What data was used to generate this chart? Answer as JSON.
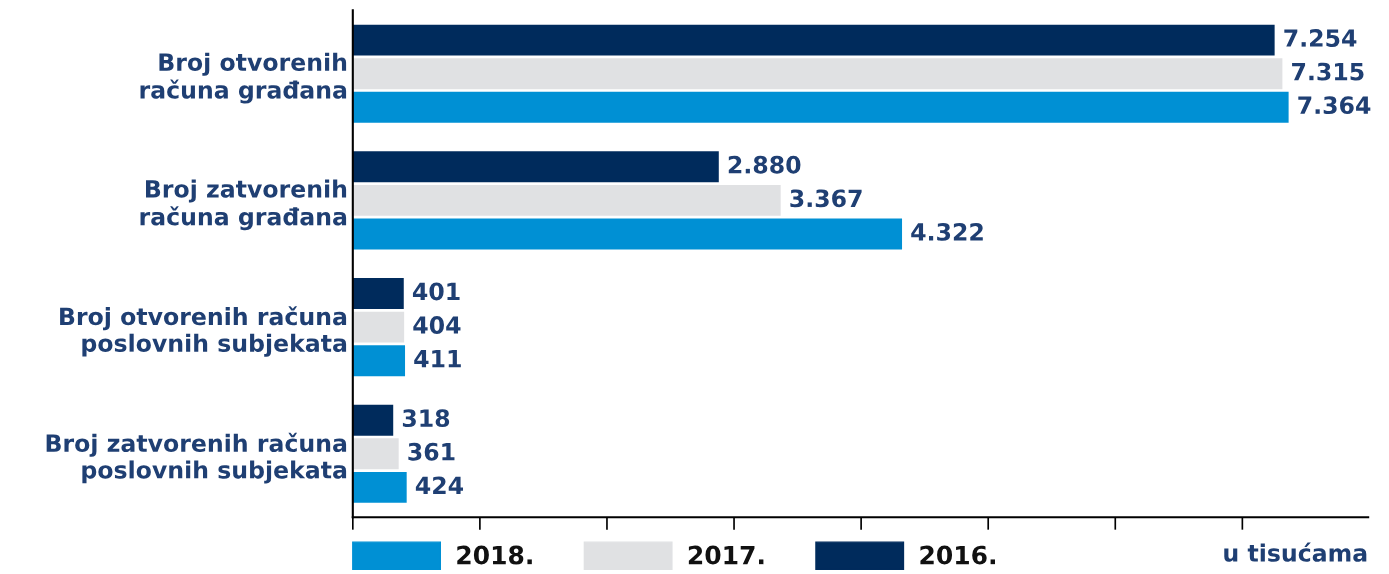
{
  "chart_data": {
    "type": "bar",
    "orientation": "horizontal",
    "categories": [
      "Broj otvorenih\nračuna građana",
      "Broj zatvorenih\nračuna građana",
      "Broj otvorenih računa\nposlovnih subjekata",
      "Broj zatvorenih računa\nposlovnih subjekata"
    ],
    "series": [
      {
        "name": "2018.",
        "color": "#0090d4",
        "values": [
          7364,
          4322,
          411,
          424
        ],
        "value_labels": [
          "7.364",
          "4.322",
          "411",
          "424"
        ]
      },
      {
        "name": "2017.",
        "color": "#e0e1e3",
        "values": [
          7315,
          3367,
          404,
          361
        ],
        "value_labels": [
          "7.315",
          "3.367",
          "404",
          "361"
        ]
      },
      {
        "name": "2016.",
        "color": "#002b5c",
        "values": [
          7254,
          2880,
          401,
          318
        ],
        "value_labels": [
          "7.254",
          "2.880",
          "401",
          "318"
        ]
      }
    ],
    "xlim": [
      0,
      7990
    ],
    "xticks": [
      {
        "value": 0,
        "label": null
      },
      {
        "value": 1000,
        "label": null
      },
      {
        "value": 2000,
        "label": null
      },
      {
        "value": 3000,
        "label": null
      },
      {
        "value": 4000,
        "label": null
      },
      {
        "value": 5000,
        "label": null
      },
      {
        "value": 6000,
        "label": null
      },
      {
        "value": 7000,
        "label": null
      }
    ],
    "tick_labels": "y",
    "xlabel": "u tisućama",
    "legend": "bottom",
    "grid": false
  }
}
